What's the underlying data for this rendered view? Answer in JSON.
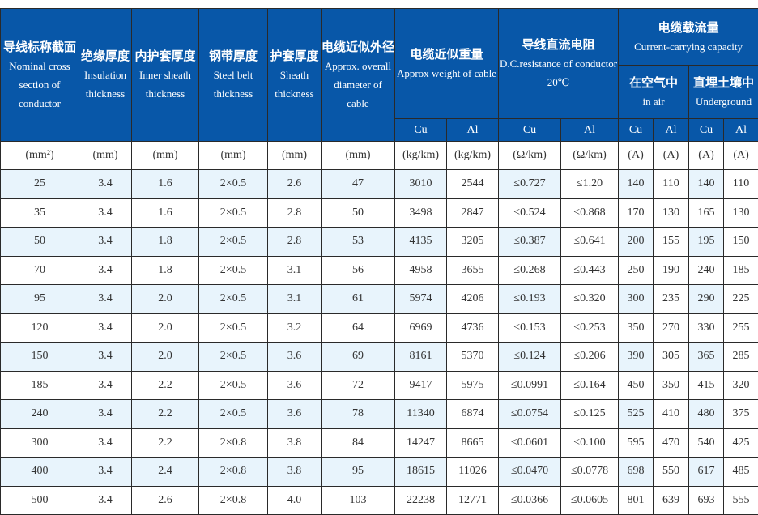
{
  "header": {
    "section": {
      "zh": "导线标称截面",
      "en": "Nominal cross section of conductor"
    },
    "insulation": {
      "zh": "绝缘厚度",
      "en": "Insulation thickness"
    },
    "inner_sheath": {
      "zh": "内护套厚度",
      "en": "Inner sheath thickness"
    },
    "steel_belt": {
      "zh": "钢带厚度",
      "en": "Steel belt thickness"
    },
    "sheath": {
      "zh": "护套厚度",
      "en": "Sheath thickness"
    },
    "diameter": {
      "zh": "电缆近似外径",
      "en": "Approx. overall diameter of cable"
    },
    "weight": {
      "zh": "电缆近似重量",
      "en": "Approx weight of cable"
    },
    "resistance": {
      "zh": "导线直流电阻",
      "en": "D.C.resistance of conductor",
      "temp": "20℃"
    },
    "capacity": {
      "zh": "电缆载流量",
      "en": "Current-carrying capacity"
    },
    "in_air": {
      "zh": "在空气中",
      "en": "in air"
    },
    "underground": {
      "zh": "直埋土壤中",
      "en": "Underground"
    },
    "cu": "Cu",
    "al": "Al"
  },
  "units": [
    "(mm²)",
    "(mm)",
    "(mm)",
    "(mm)",
    "(mm)",
    "(mm)",
    "(kg/km)",
    "(kg/km)",
    "(Ω/km)",
    "(Ω/km)",
    "(A)",
    "(A)",
    "(A)",
    "(A)"
  ],
  "rows": [
    [
      "25",
      "3.4",
      "1.6",
      "2×0.5",
      "2.6",
      "47",
      "3010",
      "2544",
      "≤0.727",
      "≤1.20",
      "140",
      "110",
      "140",
      "110"
    ],
    [
      "35",
      "3.4",
      "1.6",
      "2×0.5",
      "2.8",
      "50",
      "3498",
      "2847",
      "≤0.524",
      "≤0.868",
      "170",
      "130",
      "165",
      "130"
    ],
    [
      "50",
      "3.4",
      "1.8",
      "2×0.5",
      "2.8",
      "53",
      "4135",
      "3205",
      "≤0.387",
      "≤0.641",
      "200",
      "155",
      "195",
      "150"
    ],
    [
      "70",
      "3.4",
      "1.8",
      "2×0.5",
      "3.1",
      "56",
      "4958",
      "3655",
      "≤0.268",
      "≤0.443",
      "250",
      "190",
      "240",
      "185"
    ],
    [
      "95",
      "3.4",
      "2.0",
      "2×0.5",
      "3.1",
      "61",
      "5974",
      "4206",
      "≤0.193",
      "≤0.320",
      "300",
      "235",
      "290",
      "225"
    ],
    [
      "120",
      "3.4",
      "2.0",
      "2×0.5",
      "3.2",
      "64",
      "6969",
      "4736",
      "≤0.153",
      "≤0.253",
      "350",
      "270",
      "330",
      "255"
    ],
    [
      "150",
      "3.4",
      "2.0",
      "2×0.5",
      "3.6",
      "69",
      "8161",
      "5370",
      "≤0.124",
      "≤0.206",
      "390",
      "305",
      "365",
      "285"
    ],
    [
      "185",
      "3.4",
      "2.2",
      "2×0.5",
      "3.6",
      "72",
      "9417",
      "5975",
      "≤0.0991",
      "≤0.164",
      "450",
      "350",
      "415",
      "320"
    ],
    [
      "240",
      "3.4",
      "2.2",
      "2×0.5",
      "3.6",
      "78",
      "11340",
      "6874",
      "≤0.0754",
      "≤0.125",
      "525",
      "410",
      "480",
      "375"
    ],
    [
      "300",
      "3.4",
      "2.2",
      "2×0.8",
      "3.8",
      "84",
      "14247",
      "8665",
      "≤0.0601",
      "≤0.100",
      "595",
      "470",
      "540",
      "425"
    ],
    [
      "400",
      "3.4",
      "2.4",
      "2×0.8",
      "3.8",
      "95",
      "18615",
      "11026",
      "≤0.0470",
      "≤0.0778",
      "698",
      "550",
      "617",
      "485"
    ],
    [
      "500",
      "3.4",
      "2.6",
      "2×0.8",
      "4.0",
      "103",
      "22238",
      "12771",
      "≤0.0366",
      "≤0.0605",
      "801",
      "639",
      "693",
      "555"
    ]
  ],
  "colors": {
    "header_bg": "#0857a8",
    "alt_row": "#e8f4fc"
  }
}
